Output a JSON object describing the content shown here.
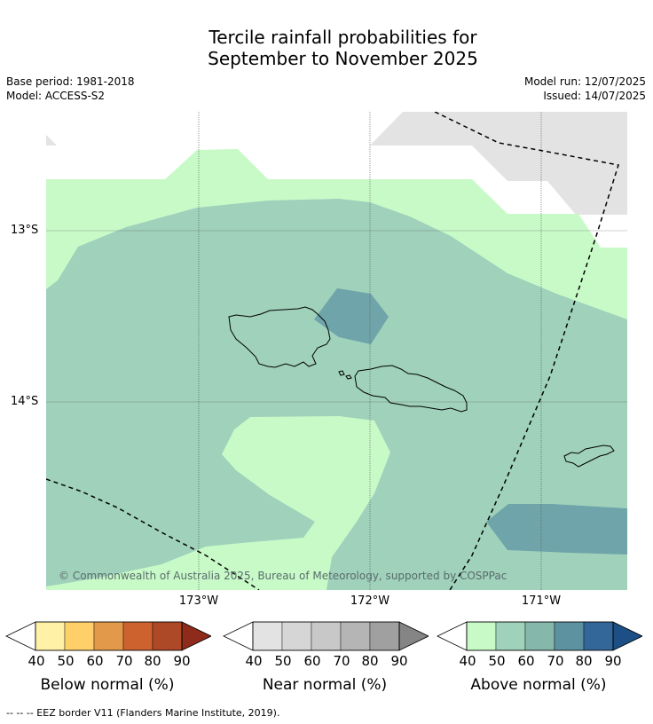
{
  "title_line1": "Tercile rainfall probabilities for",
  "title_line2": "September to November 2025",
  "base_period": "Base period: 1981-2018",
  "model": "Model: ACCESS-S2",
  "model_run": "Model run: 12/07/2025",
  "issued": "Issued: 14/07/2025",
  "lat_labels": [
    "13°S",
    "14°S"
  ],
  "lon_labels": [
    "173°W",
    "172°W",
    "171°W"
  ],
  "copyright": "© Commonwealth of Australia 2025, Bureau of Meteorology, supported by COSPPac",
  "colorbars": [
    {
      "title": "Below normal (%)",
      "colors": [
        "#fff1a6",
        "#ffd06a",
        "#e2994a",
        "#cd622f",
        "#ad4927",
        "#8e2b1a"
      ],
      "ticks": [
        "40",
        "50",
        "60",
        "70",
        "80",
        "90"
      ]
    },
    {
      "title": "Near normal (%)",
      "colors": [
        "#e3e3e3",
        "#d6d6d6",
        "#c8c8c8",
        "#b5b5b5",
        "#a0a0a0",
        "#858585"
      ],
      "ticks": [
        "40",
        "50",
        "60",
        "70",
        "80",
        "90"
      ]
    },
    {
      "title": "Above normal (%)",
      "colors": [
        "#c8fac8",
        "#9fd1bb",
        "#85b7aa",
        "#5d92a0",
        "#336699",
        "#1b4f86"
      ],
      "ticks": [
        "40",
        "50",
        "60",
        "70",
        "80",
        "90"
      ]
    }
  ],
  "footnote": "--  --  -- EEZ border V11 (Flanders Marine Institute, 2019).",
  "map_colors": {
    "above_40_50": "#c8fac8",
    "above_50_60": "#9fd1bb",
    "above_70_80": "#6fa5aa",
    "near_40_50": "#e3e3e3"
  }
}
